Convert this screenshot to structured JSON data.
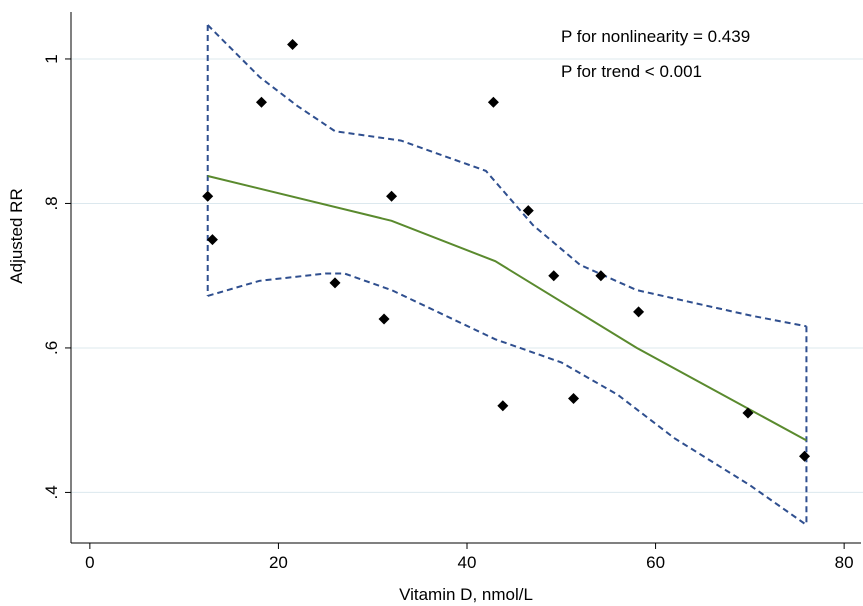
{
  "chart_data": {
    "type": "scatter",
    "xlabel": "Vitamin D, nmol/L",
    "ylabel": "Adjusted RR",
    "xlim": [
      -2,
      82
    ],
    "ylim": [
      0.33,
      1.065
    ],
    "xticks": [
      {
        "value": 0,
        "label": "0"
      },
      {
        "value": 20,
        "label": "20"
      },
      {
        "value": 40,
        "label": "40"
      },
      {
        "value": 60,
        "label": "60"
      },
      {
        "value": 80,
        "label": "80"
      }
    ],
    "yticks": [
      {
        "value": 0.4,
        "label": ".4"
      },
      {
        "value": 0.6,
        "label": ".6"
      },
      {
        "value": 0.8,
        "label": ".8"
      },
      {
        "value": 1.0,
        "label": "1"
      }
    ],
    "grid": "horizontal",
    "annotations": [
      "P for nonlinearity = 0.439",
      "P for trend < 0.001"
    ],
    "points": [
      {
        "x": 12.5,
        "y": 0.81
      },
      {
        "x": 13.0,
        "y": 0.75
      },
      {
        "x": 18.2,
        "y": 0.94
      },
      {
        "x": 21.5,
        "y": 1.02
      },
      {
        "x": 26.0,
        "y": 0.69
      },
      {
        "x": 31.2,
        "y": 0.64
      },
      {
        "x": 32.0,
        "y": 0.81
      },
      {
        "x": 42.8,
        "y": 0.94
      },
      {
        "x": 43.8,
        "y": 0.52
      },
      {
        "x": 46.5,
        "y": 0.79
      },
      {
        "x": 49.2,
        "y": 0.7
      },
      {
        "x": 51.3,
        "y": 0.53
      },
      {
        "x": 54.2,
        "y": 0.7
      },
      {
        "x": 58.2,
        "y": 0.65
      },
      {
        "x": 69.8,
        "y": 0.51
      },
      {
        "x": 75.8,
        "y": 0.45
      }
    ],
    "fit_line": {
      "color": "#5a8a2e",
      "x": [
        12.5,
        32,
        43,
        58,
        76
      ],
      "y": [
        0.838,
        0.776,
        0.72,
        0.6,
        0.472
      ]
    },
    "ci_upper": {
      "color": "#2f4f8f",
      "x": [
        12.5,
        18,
        22,
        26,
        33,
        42,
        47,
        52,
        58,
        70,
        76
      ],
      "y": [
        1.047,
        0.975,
        0.935,
        0.9,
        0.887,
        0.845,
        0.77,
        0.715,
        0.68,
        0.645,
        0.63
      ]
    },
    "ci_lower": {
      "color": "#2f4f8f",
      "x": [
        12.5,
        18,
        25,
        27,
        32,
        43,
        50,
        56,
        62,
        70,
        76
      ],
      "y": [
        0.672,
        0.693,
        0.703,
        0.703,
        0.68,
        0.612,
        0.58,
        0.535,
        0.475,
        0.41,
        0.355
      ]
    }
  }
}
